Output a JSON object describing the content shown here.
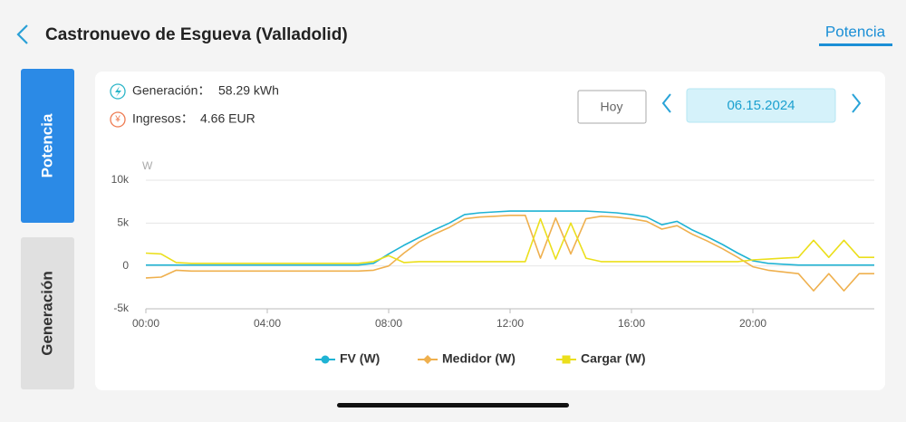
{
  "header": {
    "title": "Castronuevo de Esgueva (Valladolid)",
    "tab": "Potencia"
  },
  "side_tabs": [
    "Potencia",
    "Generación"
  ],
  "summary": [
    {
      "icon": "¥",
      "label": "Generación：",
      "value": "58.29 kWh"
    },
    {
      "icon": "¥",
      "label": "Ingresos：",
      "value": "4.66 EUR"
    }
  ],
  "date_controls": {
    "button": "Hoy",
    "date": "06.15.2024"
  },
  "chart_data": {
    "type": "line",
    "y_unit": "W",
    "x": [
      0,
      0.5,
      1,
      1.5,
      2,
      2.5,
      3,
      3.5,
      4,
      4.5,
      5,
      5.5,
      6,
      6.5,
      7,
      7.5,
      8,
      8.5,
      9,
      9.5,
      10,
      10.5,
      11,
      11.5,
      12,
      12.5,
      13,
      13.5,
      14,
      14.5,
      15,
      15.5,
      16,
      16.5,
      17,
      17.5,
      18,
      18.5,
      19,
      19.5,
      20,
      20.5,
      21,
      21.5,
      22,
      22.5,
      23,
      23.5,
      24
    ],
    "xlim": [
      0,
      24
    ],
    "xticks": [
      {
        "value": 0,
        "label": "00:00"
      },
      {
        "value": 4,
        "label": "04:00"
      },
      {
        "value": 8,
        "label": "08:00"
      },
      {
        "value": 12,
        "label": "12:00"
      },
      {
        "value": 16,
        "label": "16:00"
      },
      {
        "value": 20,
        "label": "20:00"
      }
    ],
    "ylim": [
      -5000,
      10000
    ],
    "yticks": [
      {
        "value": -5000,
        "label": "-5k"
      },
      0,
      {
        "value": 5000,
        "label": "5k"
      },
      {
        "value": 10000,
        "label": "10k"
      }
    ],
    "grid": true,
    "legend": "bottom",
    "series": [
      {
        "name": "FV (W)",
        "color": "#1fb3d4",
        "marker": "circle",
        "values": [
          100,
          100,
          100,
          100,
          100,
          100,
          100,
          100,
          100,
          100,
          100,
          100,
          100,
          100,
          100,
          300,
          1400,
          2400,
          3300,
          4200,
          5000,
          6000,
          6200,
          6300,
          6400,
          6400,
          6400,
          6400,
          6400,
          6400,
          6300,
          6200,
          6000,
          5700,
          4800,
          5200,
          4200,
          3400,
          2500,
          1500,
          600,
          300,
          200,
          100,
          100,
          100,
          100,
          100,
          100
        ]
      },
      {
        "name": "Medidor (W)",
        "color": "#efb04e",
        "marker": "diamond",
        "values": [
          -1400,
          -1300,
          -500,
          -600,
          -600,
          -600,
          -600,
          -600,
          -600,
          -600,
          -600,
          -600,
          -600,
          -600,
          -600,
          -500,
          0,
          1500,
          2800,
          3700,
          4500,
          5500,
          5700,
          5800,
          5900,
          5900,
          900,
          5600,
          1400,
          5500,
          5800,
          5700,
          5500,
          5200,
          4300,
          4700,
          3700,
          2900,
          2000,
          1000,
          -100,
          -500,
          -700,
          -900,
          -2900,
          -900,
          -2900,
          -900,
          -900
        ]
      },
      {
        "name": "Cargar (W)",
        "color": "#ebdf1c",
        "marker": "square",
        "values": [
          1500,
          1400,
          400,
          300,
          300,
          300,
          300,
          300,
          300,
          300,
          300,
          300,
          300,
          300,
          300,
          500,
          1200,
          400,
          500,
          500,
          500,
          500,
          500,
          500,
          500,
          500,
          5500,
          800,
          5000,
          900,
          500,
          500,
          500,
          500,
          500,
          500,
          500,
          500,
          500,
          500,
          700,
          800,
          900,
          1000,
          3000,
          1000,
          3000,
          1000,
          1000
        ]
      }
    ]
  }
}
